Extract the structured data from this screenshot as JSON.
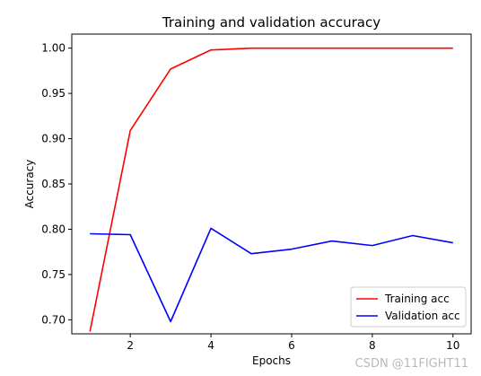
{
  "chart_data": {
    "type": "line",
    "title": "Training and validation accuracy",
    "xlabel": "Epochs",
    "ylabel": "Accuracy",
    "xlim": [
      0.55,
      10.45
    ],
    "ylim": [
      0.6845,
      1.0155
    ],
    "xticks": [
      2,
      4,
      6,
      8,
      10
    ],
    "xtick_labels": [
      "2",
      "4",
      "6",
      "8",
      "10"
    ],
    "yticks": [
      0.7,
      0.75,
      0.8,
      0.85,
      0.9,
      0.95,
      1.0
    ],
    "ytick_labels": [
      "0.70",
      "0.75",
      "0.80",
      "0.85",
      "0.90",
      "0.95",
      "1.00"
    ],
    "x": [
      1,
      2,
      3,
      4,
      5,
      6,
      7,
      8,
      9,
      10
    ],
    "series": [
      {
        "name": "Training acc",
        "color": "#ff0000",
        "values": [
          0.687,
          0.909,
          0.977,
          0.998,
          1.0,
          1.0,
          1.0,
          1.0,
          1.0,
          1.0
        ]
      },
      {
        "name": "Validation acc",
        "color": "#0000ff",
        "values": [
          0.795,
          0.794,
          0.698,
          0.801,
          0.773,
          0.778,
          0.787,
          0.782,
          0.793,
          0.785
        ]
      }
    ],
    "grid": false,
    "legend_position": "lower right"
  },
  "watermark": "CSDN @11FIGHT11"
}
